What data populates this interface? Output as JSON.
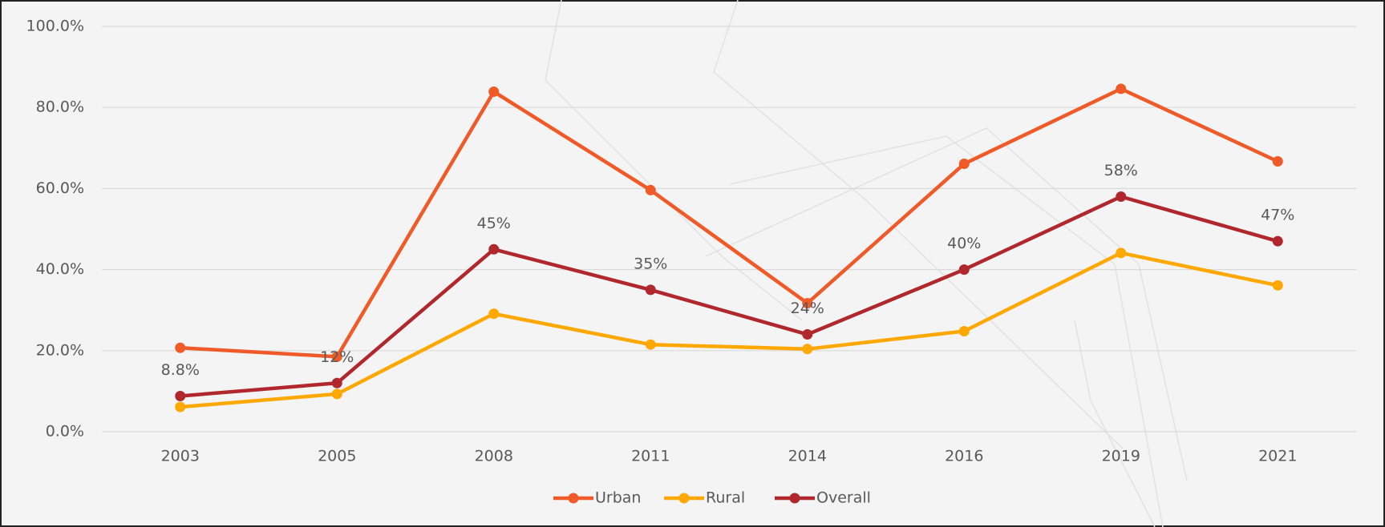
{
  "chart_data": {
    "type": "line",
    "categories": [
      "2003",
      "2005",
      "2008",
      "2011",
      "2014",
      "2016",
      "2019",
      "2021"
    ],
    "series": [
      {
        "name": "Urban",
        "color": "#f05a28",
        "values": [
          20.7,
          18.5,
          83.9,
          59.6,
          31.7,
          66.1,
          84.6,
          66.7
        ]
      },
      {
        "name": "Rural",
        "color": "#ffa800",
        "values": [
          6.1,
          9.3,
          29.1,
          21.5,
          20.4,
          24.8,
          44.1,
          36.1
        ]
      },
      {
        "name": "Overall",
        "color": "#b0282e",
        "values": [
          8.8,
          12,
          45,
          35,
          24,
          40,
          58,
          47
        ],
        "value_labels": [
          "8.8%",
          "12%",
          "45%",
          "35%",
          "24%",
          "40%",
          "58%",
          "47%"
        ]
      }
    ],
    "ylim": [
      0,
      100
    ],
    "yticks": [
      {
        "value": 0,
        "label": "0.0%"
      },
      {
        "value": 20,
        "label": "20.0%"
      },
      {
        "value": 40,
        "label": "40.0%"
      },
      {
        "value": 60,
        "label": "60.0%"
      },
      {
        "value": 80,
        "label": "80.0%"
      },
      {
        "value": 100,
        "label": "100.0%"
      }
    ],
    "grid": true,
    "legend": "bottom"
  }
}
